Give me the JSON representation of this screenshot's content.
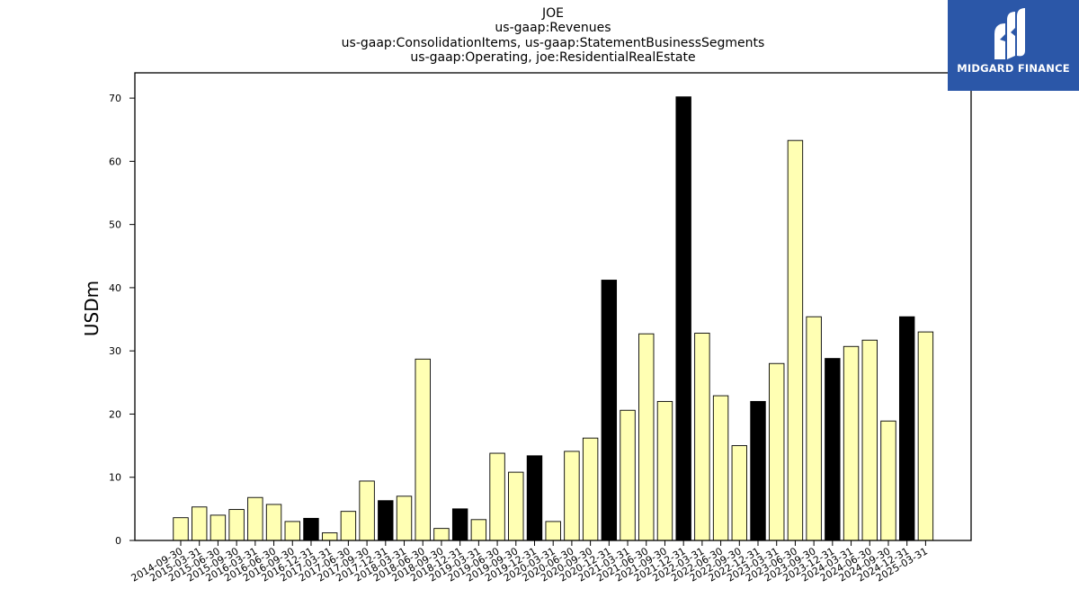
{
  "chart_data": {
    "type": "bar",
    "title_lines": [
      "JOE",
      "us-gaap:Revenues",
      "us-gaap:ConsolidationItems, us-gaap:StatementBusinessSegments",
      "us-gaap:Operating, joe:ResidentialRealEstate"
    ],
    "ylabel": "USDm",
    "xlabel": "",
    "ylim": [
      0,
      74
    ],
    "yticks": [
      0,
      10,
      20,
      30,
      40,
      50,
      60,
      70
    ],
    "grid": false,
    "colors": {
      "quarter": "#ffffb3",
      "annual": "#000000",
      "edge": "#000000"
    },
    "categories": [
      "2014-09-30",
      "2015-03-31",
      "2015-06-30",
      "2015-09-30",
      "2016-03-31",
      "2016-06-30",
      "2016-09-30",
      "2016-12-31",
      "2017-03-31",
      "2017-06-30",
      "2017-09-30",
      "2017-12-31",
      "2018-03-31",
      "2018-06-30",
      "2018-09-30",
      "2018-12-31",
      "2019-03-31",
      "2019-06-30",
      "2019-09-30",
      "2019-12-31",
      "2020-03-31",
      "2020-06-30",
      "2020-09-30",
      "2020-12-31",
      "2021-03-31",
      "2021-06-30",
      "2021-09-30",
      "2021-12-31",
      "2022-03-31",
      "2022-06-30",
      "2022-09-30",
      "2022-12-31",
      "2023-03-31",
      "2023-06-30",
      "2023-09-30",
      "2023-12-31",
      "2024-03-31",
      "2024-06-30",
      "2024-09-30",
      "2024-12-31",
      "2025-03-31"
    ],
    "values": [
      3.6,
      5.3,
      4.0,
      4.9,
      6.8,
      5.7,
      3.0,
      3.5,
      1.2,
      4.6,
      9.4,
      6.3,
      7.0,
      28.7,
      1.9,
      5.0,
      3.3,
      13.8,
      10.8,
      13.4,
      3.0,
      14.1,
      16.2,
      41.2,
      20.6,
      32.7,
      22.0,
      70.2,
      32.8,
      22.9,
      15.0,
      22.0,
      28.0,
      63.3,
      35.4,
      28.8,
      30.7,
      31.7,
      18.9,
      35.4,
      33.0
    ],
    "annual_flags": [
      false,
      false,
      false,
      false,
      false,
      false,
      false,
      true,
      false,
      false,
      false,
      true,
      false,
      false,
      false,
      true,
      false,
      false,
      false,
      true,
      false,
      false,
      false,
      true,
      false,
      false,
      false,
      true,
      false,
      false,
      false,
      true,
      false,
      false,
      false,
      true,
      false,
      false,
      false,
      true,
      false
    ]
  },
  "logo": {
    "text": "MIDGARD FINANCE",
    "background": "#2b57a8"
  }
}
